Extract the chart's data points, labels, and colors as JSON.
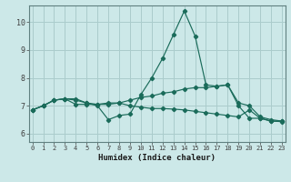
{
  "xlabel": "Humidex (Indice chaleur)",
  "bg_color": "#cce8e8",
  "grid_color": "#aacccc",
  "line_color": "#1a6b5a",
  "x_ticks": [
    0,
    1,
    2,
    3,
    4,
    5,
    6,
    7,
    8,
    9,
    10,
    11,
    12,
    13,
    14,
    15,
    16,
    17,
    18,
    19,
    20,
    21,
    22,
    23
  ],
  "y_ticks": [
    6,
    7,
    8,
    9,
    10
  ],
  "ylim": [
    5.7,
    10.6
  ],
  "xlim": [
    -0.3,
    23.3
  ],
  "series": [
    [
      6.85,
      7.0,
      7.2,
      7.25,
      7.25,
      7.1,
      7.0,
      6.5,
      6.65,
      6.7,
      7.4,
      8.0,
      8.7,
      9.55,
      10.4,
      9.5,
      7.75,
      7.7,
      7.75,
      7.0,
      6.55,
      6.55,
      6.45,
      6.45
    ],
    [
      6.85,
      7.0,
      7.2,
      7.25,
      7.2,
      7.1,
      7.05,
      7.05,
      7.1,
      7.2,
      7.3,
      7.35,
      7.45,
      7.5,
      7.6,
      7.65,
      7.65,
      7.7,
      7.75,
      7.1,
      7.0,
      6.6,
      6.5,
      6.45
    ],
    [
      6.85,
      7.0,
      7.2,
      7.25,
      7.05,
      7.05,
      7.05,
      7.1,
      7.1,
      7.0,
      6.95,
      6.9,
      6.9,
      6.88,
      6.85,
      6.8,
      6.75,
      6.7,
      6.65,
      6.6,
      6.85,
      6.55,
      6.45,
      6.43
    ]
  ]
}
